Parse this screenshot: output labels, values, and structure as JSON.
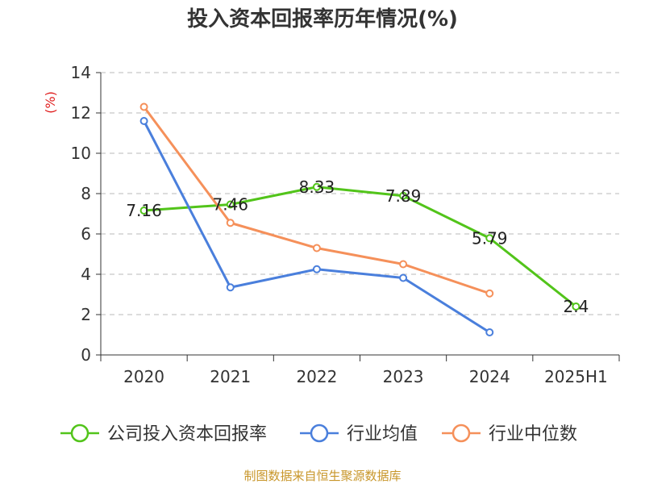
{
  "chart_data": {
    "type": "line",
    "title": "投入资本回报率历年情况(%)",
    "ylabel": "(%)",
    "categories": [
      "2020",
      "2021",
      "2022",
      "2023",
      "2024",
      "2025H1"
    ],
    "ylim": [
      0,
      14
    ],
    "yticks": [
      0,
      2,
      4,
      6,
      8,
      10,
      12,
      14
    ],
    "grid": true,
    "legend_position": "bottom",
    "series": [
      {
        "name": "公司投入资本回报率",
        "color": "#52c41a",
        "values": [
          7.16,
          7.46,
          8.33,
          7.89,
          5.79,
          2.4
        ],
        "labels": [
          "7.16",
          "7.46",
          "8.33",
          "7.89",
          "5.79",
          "2.4"
        ]
      },
      {
        "name": "行业均值",
        "color": "#4a7fdc",
        "values": [
          11.6,
          3.35,
          4.25,
          3.82,
          1.12,
          null
        ]
      },
      {
        "name": "行业中位数",
        "color": "#f5905a",
        "values": [
          12.3,
          6.55,
          5.3,
          4.5,
          3.05,
          null
        ]
      }
    ],
    "source": "制图数据来自恒生聚源数据库"
  }
}
